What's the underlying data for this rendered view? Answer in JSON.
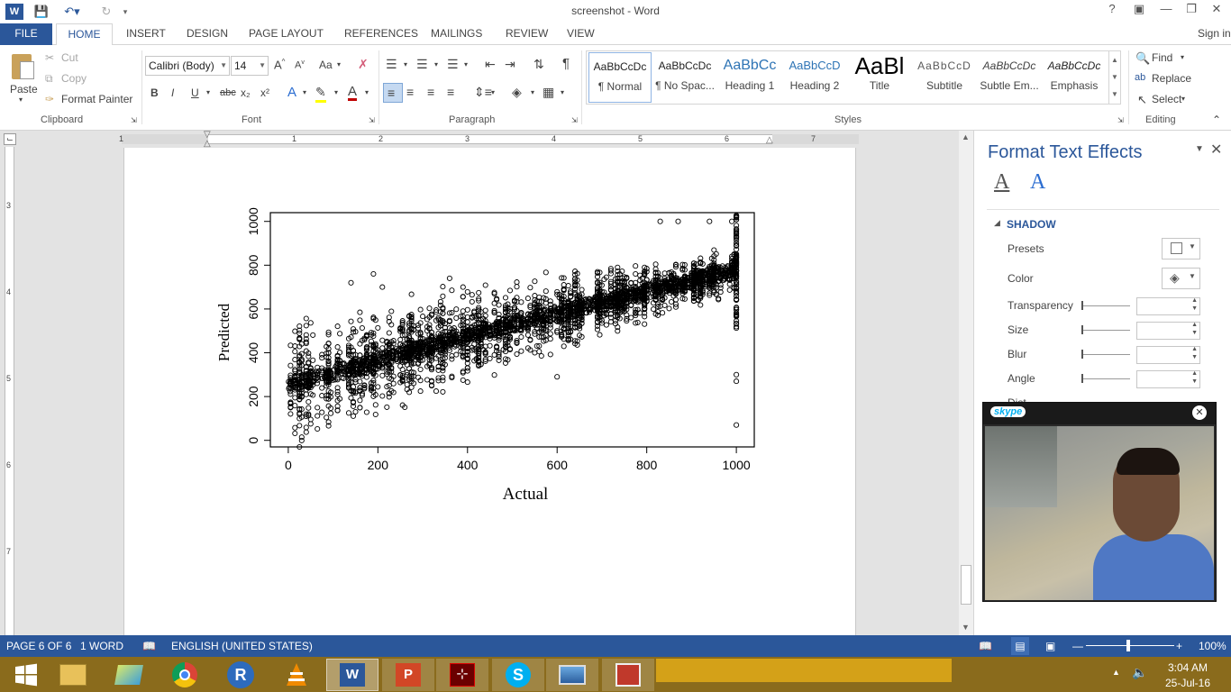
{
  "window": {
    "title": "screenshot - Word",
    "help": "?",
    "sign_in": "Sign in"
  },
  "tabs": [
    "FILE",
    "HOME",
    "INSERT",
    "DESIGN",
    "PAGE LAYOUT",
    "REFERENCES",
    "MAILINGS",
    "REVIEW",
    "VIEW"
  ],
  "clipboard": {
    "paste": "Paste",
    "cut": "Cut",
    "copy": "Copy",
    "format_painter": "Format Painter",
    "label": "Clipboard"
  },
  "font": {
    "family": "Calibri (Body)",
    "size": "14",
    "label": "Font",
    "change_case": "Aa",
    "bold": "B",
    "italic": "I",
    "underline": "U",
    "strike": "abc",
    "sub": "x₂",
    "sup": "x²"
  },
  "paragraph": {
    "label": "Paragraph"
  },
  "styles": {
    "label": "Styles",
    "items": [
      {
        "preview": "AaBbCcDc",
        "name": "¶ Normal"
      },
      {
        "preview": "AaBbCcDc",
        "name": "¶ No Spac..."
      },
      {
        "preview": "AaBbCc",
        "name": "Heading 1"
      },
      {
        "preview": "AaBbCcD",
        "name": "Heading 2"
      },
      {
        "preview": "AaBl",
        "name": "Title"
      },
      {
        "preview": "AaBbCcD",
        "name": "Subtitle"
      },
      {
        "preview": "AaBbCcDc",
        "name": "Subtle Em..."
      },
      {
        "preview": "AaBbCcDc",
        "name": "Emphasis"
      }
    ]
  },
  "editing": {
    "find": "Find",
    "replace": "Replace",
    "select": "Select",
    "label": "Editing"
  },
  "ruler_marks": [
    "1",
    "1",
    "2",
    "3",
    "4",
    "5",
    "6",
    "7"
  ],
  "vruler_marks": [
    "3",
    "4",
    "5",
    "6",
    "7"
  ],
  "pane": {
    "title": "Format Text Effects",
    "section": "SHADOW",
    "rows": [
      "Presets",
      "Color",
      "Transparency",
      "Size",
      "Blur",
      "Angle",
      "Dist"
    ]
  },
  "skype": {
    "logo": "skype"
  },
  "status": {
    "page": "PAGE 6 OF 6",
    "words": "1 WORD",
    "language": "ENGLISH (UNITED STATES)",
    "zoom": "100%"
  },
  "clock": {
    "time": "3:04 AM",
    "date": "25-Jul-16"
  },
  "taskbar_apps": [
    "start",
    "explorer",
    "folder",
    "chrome",
    "r",
    "vlc",
    "word",
    "powerpoint",
    "acrobat",
    "skype",
    "photos",
    "app"
  ],
  "colors": {
    "accent": "#2b579a",
    "taskbar": "#8a6b1c"
  },
  "chart_data": {
    "type": "scatter",
    "xlabel": "Actual",
    "ylabel": "Predicted",
    "xlim": [
      -40,
      1040
    ],
    "ylim": [
      -30,
      1040
    ],
    "xticks": [
      "0",
      "200",
      "400",
      "600",
      "800",
      "1000"
    ],
    "yticks": [
      "0",
      "200",
      "400",
      "600",
      "800",
      "1000"
    ],
    "trend": {
      "x": [
        0,
        200,
        400,
        600,
        800,
        1000
      ],
      "y": [
        250,
        360,
        480,
        580,
        680,
        780
      ]
    },
    "outliers": {
      "x": [
        140,
        190,
        210,
        360,
        830,
        990,
        1000,
        1000,
        1000,
        870,
        940,
        600
      ],
      "y": [
        720,
        760,
        700,
        740,
        1000,
        1000,
        300,
        270,
        70,
        1000,
        1000,
        290
      ]
    }
  }
}
